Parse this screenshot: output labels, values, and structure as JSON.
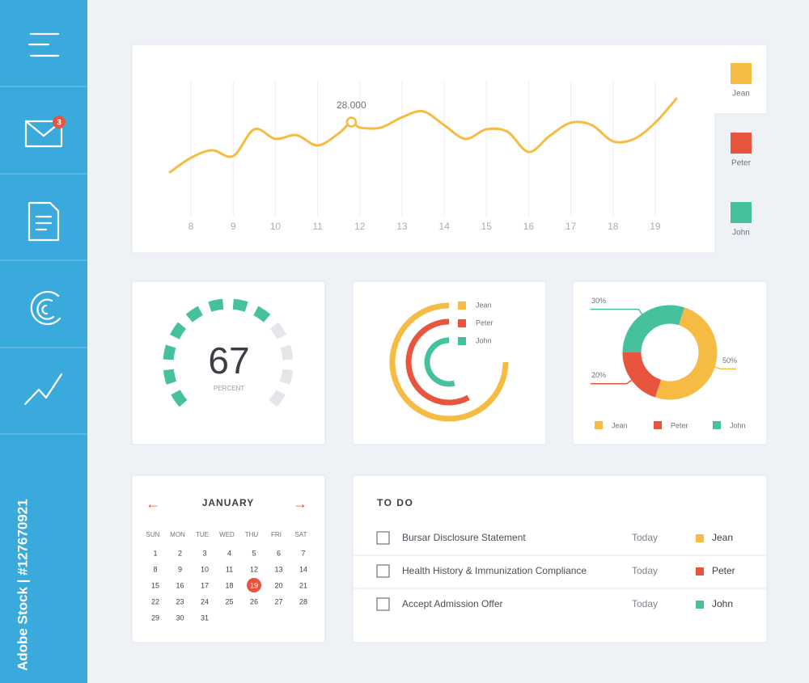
{
  "sidebar": {
    "badge": 3,
    "watermark": "Adobe Stock | #127670921"
  },
  "line_chart": {
    "type": "line",
    "x": [
      7.5,
      8,
      8.5,
      9,
      9.5,
      10,
      10.5,
      11,
      11.5,
      11.8,
      12,
      12.5,
      13,
      13.5,
      14,
      14.5,
      15,
      15.5,
      16,
      16.5,
      17,
      17.5,
      18,
      18.5,
      19,
      19.5
    ],
    "values": [
      13400,
      17600,
      19800,
      18100,
      25900,
      23100,
      24200,
      21200,
      24700,
      28000,
      26400,
      26400,
      29400,
      31100,
      27100,
      23100,
      25900,
      25200,
      19300,
      24000,
      27800,
      27100,
      22400,
      23100,
      27800,
      34800
    ],
    "value_labels": [
      null,
      null,
      null,
      null,
      null,
      null,
      null,
      null,
      null,
      "28.000",
      null,
      null,
      null,
      null,
      null,
      null,
      null,
      null,
      null,
      null,
      null,
      null,
      null,
      null,
      null,
      null
    ],
    "color": "#f5bb42",
    "xlim": [
      7.5,
      19.5
    ],
    "ylim": [
      0,
      40000
    ],
    "xticks": [
      8,
      9,
      10,
      11,
      12,
      13,
      14,
      15,
      16,
      17,
      18,
      19
    ],
    "grid": true
  },
  "legend": [
    {
      "name": "Jean",
      "color": "#f5bb42"
    },
    {
      "name": "Peter",
      "color": "#e8553f"
    },
    {
      "name": "John",
      "color": "#45c29d"
    }
  ],
  "gauge": {
    "type": "gauge",
    "value": 67,
    "label": "PERCENT",
    "ylim": [
      0,
      100
    ],
    "color": "#45c29d",
    "track_color": "#e4e6e9"
  },
  "radial_chart": {
    "type": "radial",
    "series": [
      {
        "name": "Jean",
        "color": "#f5bb42",
        "value": 75
      },
      {
        "name": "Peter",
        "color": "#e8553f",
        "value": 58
      },
      {
        "name": "John",
        "color": "#45c29d",
        "value": 54
      }
    ]
  },
  "donut_chart": {
    "type": "donut",
    "categories": [
      "Jean",
      "Peter",
      "John"
    ],
    "values": [
      50,
      20,
      30
    ],
    "value_labels": [
      "50%",
      "20%",
      "30%"
    ],
    "colors": [
      "#f5bb42",
      "#e8553f",
      "#45c29d"
    ]
  },
  "calendar": {
    "month": "JANUARY",
    "prev": "←",
    "next": "→",
    "weekdays": [
      "SUN",
      "MON",
      "TUE",
      "WED",
      "THU",
      "FRI",
      "SAT"
    ],
    "days": [
      1,
      2,
      3,
      4,
      5,
      6,
      7,
      8,
      9,
      10,
      11,
      12,
      13,
      14,
      15,
      16,
      17,
      18,
      19,
      20,
      21,
      22,
      23,
      24,
      25,
      26,
      27,
      28,
      29,
      30,
      31
    ],
    "highlight": 19
  },
  "todo": {
    "title": "TO DO",
    "items": [
      {
        "text": "Bursar Disclosure Statement",
        "due": "Today",
        "person": "Jean",
        "color": "#f5bb42"
      },
      {
        "text": "Health History & Immunization Compliance",
        "due": "Today",
        "person": "Peter",
        "color": "#e8553f"
      },
      {
        "text": "Accept Admission Offer",
        "due": "Today",
        "person": "John",
        "color": "#45c29d"
      }
    ]
  }
}
